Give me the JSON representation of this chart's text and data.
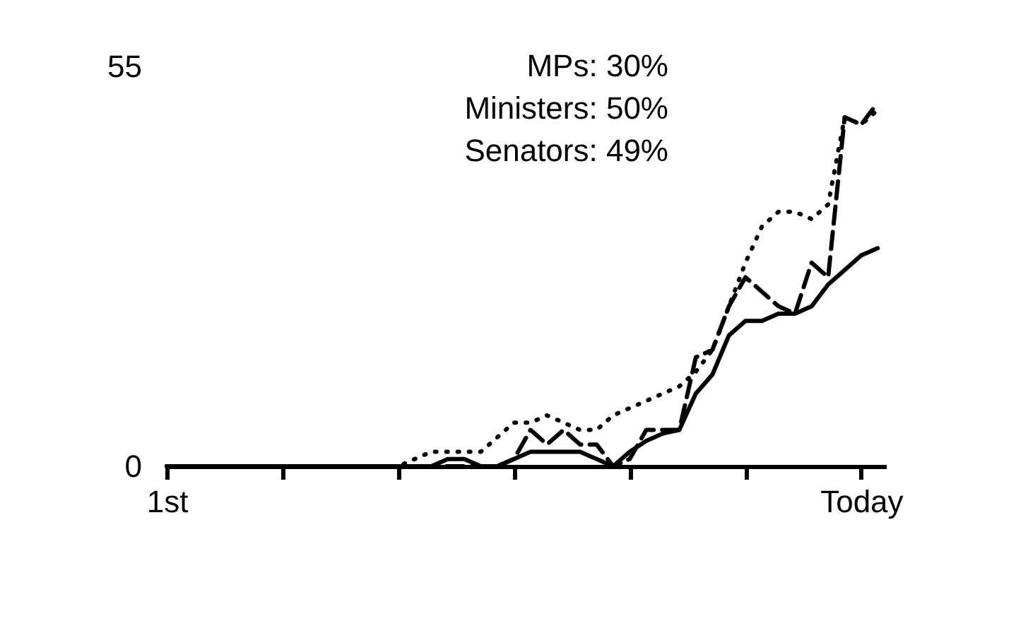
{
  "chart_data": {
    "type": "line",
    "categories": [
      "1st",
      null,
      null,
      null,
      null,
      null,
      null,
      null,
      null,
      null,
      null,
      null,
      null,
      null,
      null,
      null,
      null,
      null,
      null,
      null,
      null,
      null,
      null,
      null,
      null,
      null,
      null,
      null,
      null,
      null,
      null,
      null,
      null,
      null,
      null,
      null,
      null,
      null,
      null,
      null,
      null,
      null,
      "Today",
      null
    ],
    "series": [
      {
        "color": "#000000",
        "line_style": "solid",
        "values": [
          0,
          0,
          0,
          0,
          0,
          0,
          0,
          0,
          0,
          0,
          0,
          0,
          0,
          0,
          0,
          0,
          0,
          1,
          1,
          0,
          0,
          1,
          2,
          2,
          2,
          2,
          1,
          0,
          2,
          3.5,
          4.5,
          5,
          10,
          12.6,
          18,
          20,
          20,
          21,
          21,
          22,
          25,
          27,
          29,
          30
        ]
      },
      {
        "color": "#000000",
        "line_style": "dashed",
        "values": [
          0,
          0,
          0,
          0,
          0,
          0,
          0,
          0,
          0,
          0,
          0,
          0,
          0,
          0,
          0,
          0,
          0,
          0,
          0,
          0,
          0,
          1,
          5,
          3,
          5,
          3,
          3,
          0,
          1,
          5,
          5,
          5,
          15,
          16,
          22,
          26,
          24,
          22,
          21,
          28,
          26,
          48,
          47,
          50
        ]
      },
      {
        "color": "#000000",
        "line_style": "dotted",
        "values": [
          0,
          0,
          0,
          0,
          0,
          0,
          0,
          0,
          0,
          0,
          0,
          0,
          0,
          0,
          0,
          1,
          2,
          2,
          2,
          2,
          4,
          6,
          6,
          7,
          6,
          5,
          5,
          7,
          8,
          9,
          10,
          11,
          13,
          16,
          22,
          28,
          33,
          35,
          35,
          34,
          36,
          48,
          47,
          49
        ]
      }
    ],
    "annotations": [
      "MPs: 30%",
      "Ministers: 50%",
      "Senators: 49%"
    ],
    "ylim": [
      0,
      55
    ],
    "yticks": [
      0,
      55
    ],
    "grid": false,
    "marker": "none"
  }
}
